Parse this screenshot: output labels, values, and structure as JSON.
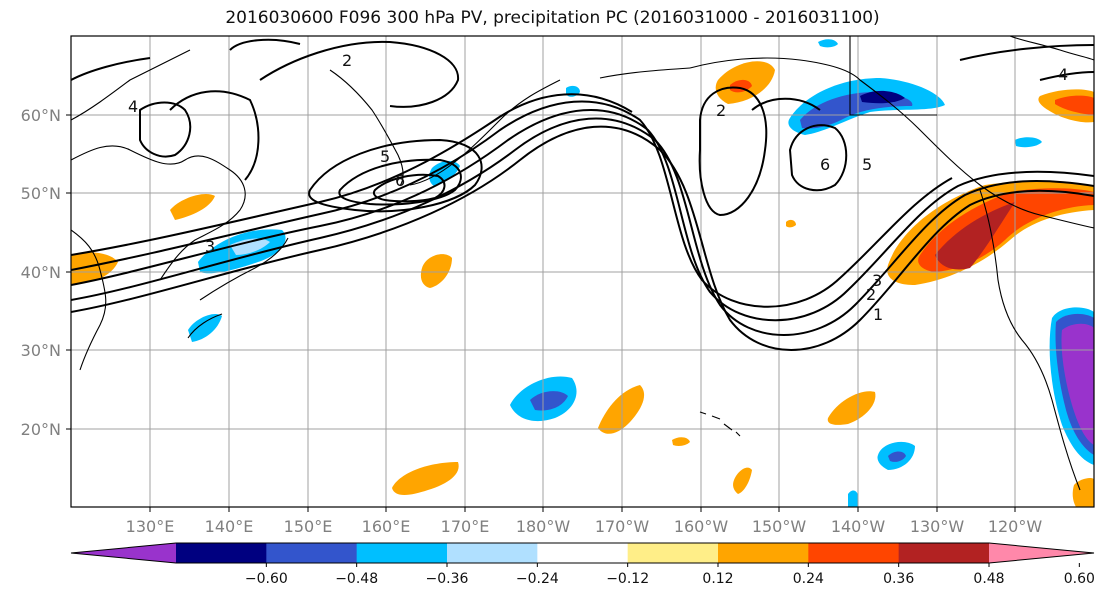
{
  "title": "2016030600 F096 300 hPa PV, precipitation PC (2016031000 - 2016031100)",
  "lon_ticks": [
    "130°E",
    "140°E",
    "150°E",
    "160°E",
    "170°E",
    "180°W",
    "170°W",
    "160°W",
    "150°W",
    "140°W",
    "130°W",
    "120°W"
  ],
  "lat_ticks": [
    "60°N",
    "50°N",
    "40°N",
    "30°N",
    "20°N"
  ],
  "colorbar": {
    "labels": [
      "−0.60",
      "−0.48",
      "−0.36",
      "−0.24",
      "−0.12",
      "0.12",
      "0.24",
      "0.36",
      "0.48",
      "0.60"
    ],
    "colors": [
      "#9933cc",
      "#000080",
      "#3355cc",
      "#00bfff",
      "#b0e0ff",
      "#ffffff",
      "#ffee88",
      "#ffa500",
      "#ff4500",
      "#b22222",
      "#ff88aa"
    ]
  },
  "pv_labels": [
    "1",
    "2",
    "3",
    "4",
    "5",
    "6"
  ],
  "contour_color": "#000000",
  "coast_color": "#000000"
}
